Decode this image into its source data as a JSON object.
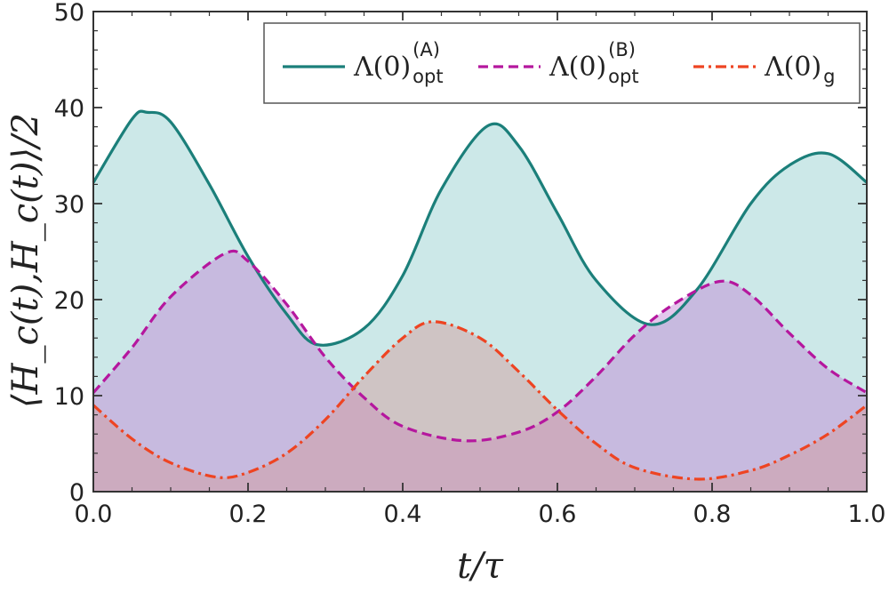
{
  "chart_data": {
    "type": "line",
    "xlabel": "t/τ",
    "ylabel": "⟨H_c(t),H_c(t)⟩/2",
    "xlim": [
      0,
      1
    ],
    "ylim": [
      0,
      50
    ],
    "xticks": [
      "0.0",
      "0.2",
      "0.4",
      "0.6",
      "0.8",
      "1.0"
    ],
    "yticks": [
      "0",
      "10",
      "20",
      "30",
      "40",
      "50"
    ],
    "legend_position": "top-right",
    "grid": false,
    "series": [
      {
        "name": "Λ(0)opt(A)",
        "legend_main": "Λ(0)",
        "legend_sub": "opt",
        "legend_sup": "(A)",
        "style": "solid",
        "color": "#1b7f7a",
        "fill": "#8ecdcc",
        "x": [
          0.0,
          0.05,
          0.07,
          0.1,
          0.15,
          0.2,
          0.25,
          0.29,
          0.35,
          0.4,
          0.45,
          0.51,
          0.55,
          0.6,
          0.65,
          0.72,
          0.78,
          0.85,
          0.9,
          0.95,
          1.0
        ],
        "y": [
          32.2,
          38.8,
          39.5,
          38.5,
          32.0,
          24.5,
          18.5,
          15.3,
          17.0,
          22.5,
          31.5,
          38.1,
          36.0,
          29.0,
          22.0,
          17.4,
          21.0,
          30.0,
          34.0,
          35.2,
          32.2
        ]
      },
      {
        "name": "Λ(0)opt(B)",
        "legend_main": "Λ(0)",
        "legend_sub": "opt",
        "legend_sup": "(B)",
        "style": "dashed",
        "color": "#b5179e",
        "fill": "#c183d4",
        "x": [
          0.0,
          0.05,
          0.1,
          0.17,
          0.2,
          0.25,
          0.3,
          0.35,
          0.4,
          0.48,
          0.55,
          0.6,
          0.65,
          0.7,
          0.75,
          0.81,
          0.85,
          0.9,
          0.95,
          1.0
        ],
        "y": [
          10.3,
          15.0,
          20.3,
          24.8,
          24.0,
          19.5,
          14.0,
          9.8,
          6.8,
          5.3,
          6.2,
          8.3,
          12.0,
          16.3,
          19.5,
          21.9,
          20.5,
          16.5,
          12.8,
          10.3
        ]
      },
      {
        "name": "Λ(0)g",
        "legend_main": "Λ(0)",
        "legend_sub": "g",
        "legend_sup": "",
        "style": "dashdot",
        "color": "#ee4422",
        "fill": "#d29a99",
        "x": [
          0.0,
          0.05,
          0.1,
          0.16,
          0.2,
          0.25,
          0.3,
          0.35,
          0.4,
          0.44,
          0.5,
          0.55,
          0.6,
          0.65,
          0.7,
          0.78,
          0.85,
          0.9,
          0.95,
          1.0
        ],
        "y": [
          9.0,
          5.5,
          3.0,
          1.5,
          2.0,
          4.0,
          7.5,
          12.0,
          16.0,
          17.7,
          16.0,
          12.5,
          8.5,
          5.0,
          2.5,
          1.3,
          2.2,
          3.8,
          6.0,
          9.0
        ]
      }
    ]
  }
}
